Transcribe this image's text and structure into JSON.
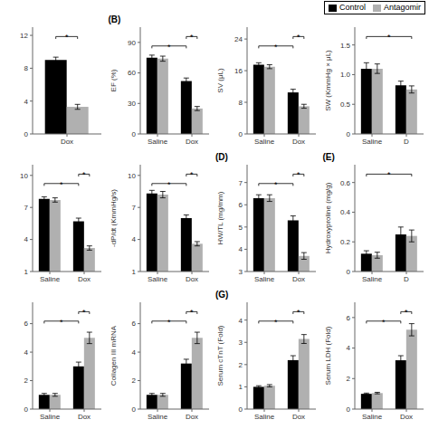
{
  "chart_data": [
    {
      "type": "bar",
      "categories": [
        "Dox"
      ],
      "series": [
        {
          "name": "Control",
          "color": "#000000",
          "values": [
            9.0
          ],
          "errors": [
            0.35
          ]
        },
        {
          "name": "Antagomir",
          "color": "#b0b0b0",
          "values": [
            3.3
          ],
          "errors": [
            0.3
          ]
        }
      ],
      "ylim": [
        0,
        13
      ],
      "yticks": [
        0,
        4,
        8,
        12
      ],
      "annotations": [
        {
          "text": "*",
          "from": {
            "series": "Control",
            "category": "Dox"
          },
          "to": {
            "series": "Antagomir",
            "category": "Dox"
          }
        }
      ]
    },
    {
      "type": "bar",
      "title": "(B)",
      "y_label": "EF (%)",
      "categories": [
        "Saline",
        "Dox"
      ],
      "series": [
        {
          "name": "Control",
          "color": "#000000",
          "values": [
            75,
            52
          ],
          "errors": [
            2.5,
            3
          ]
        },
        {
          "name": "Antagomir",
          "color": "#b0b0b0",
          "values": [
            74,
            25
          ],
          "errors": [
            2.5,
            2
          ]
        }
      ],
      "ylim": [
        0,
        105
      ],
      "yticks": [
        0,
        30,
        60,
        90
      ],
      "annotations": [
        {
          "text": "*",
          "from": {
            "series": "Control",
            "category": "Saline"
          },
          "to": {
            "series": "Control",
            "category": "Dox"
          }
        },
        {
          "text": "*",
          "from": {
            "series": "Control",
            "category": "Dox"
          },
          "to": {
            "series": "Antagomir",
            "category": "Dox"
          }
        }
      ]
    },
    {
      "type": "bar",
      "y_label": "SV (μL)",
      "categories": [
        "Saline",
        "Dox"
      ],
      "series": [
        {
          "name": "Control",
          "color": "#000000",
          "values": [
            17.5,
            10.5
          ],
          "errors": [
            0.5,
            0.8
          ]
        },
        {
          "name": "Antagomir",
          "color": "#b0b0b0",
          "values": [
            17.0,
            7.0
          ],
          "errors": [
            0.5,
            0.5
          ]
        }
      ],
      "ylim": [
        0,
        27
      ],
      "yticks": [
        0,
        8,
        16,
        24
      ],
      "annotations": [
        {
          "text": "*",
          "from": {
            "series": "Control",
            "category": "Saline"
          },
          "to": {
            "series": "Control",
            "category": "Dox"
          }
        },
        {
          "text": "*",
          "from": {
            "series": "Control",
            "category": "Dox"
          },
          "to": {
            "series": "Antagomir",
            "category": "Dox"
          }
        }
      ]
    },
    {
      "type": "bar",
      "y_label": "SW (KmmHg × μL)",
      "categories": [
        "Saline",
        "D"
      ],
      "series": [
        {
          "name": "Control",
          "color": "#000000",
          "values": [
            1.1,
            0.82
          ],
          "errors": [
            0.1,
            0.07
          ]
        },
        {
          "name": "Antagomir",
          "color": "#b0b0b0",
          "values": [
            1.1,
            0.75
          ],
          "errors": [
            0.08,
            0.06
          ]
        }
      ],
      "ylim": [
        0,
        1.8
      ],
      "yticks": [
        0,
        0.5,
        {
          "value": 1.0,
          "label": "1.0"
        },
        1.5
      ],
      "annotations": [
        {
          "text": "*",
          "from": {
            "series": "Control",
            "category": "Saline"
          },
          "to": {
            "series": "Antagomir",
            "category": "D"
          }
        }
      ],
      "legend": "upper right"
    },
    {
      "type": "bar",
      "categories": [
        "Saline",
        "Dox"
      ],
      "series": [
        {
          "name": "Control",
          "color": "#000000",
          "values": [
            7.8,
            5.7
          ],
          "errors": [
            0.2,
            0.3
          ]
        },
        {
          "name": "Antagomir",
          "color": "#b0b0b0",
          "values": [
            7.7,
            3.2
          ],
          "errors": [
            0.2,
            0.2
          ]
        }
      ],
      "ylim": [
        1,
        11
      ],
      "yticks": [
        1,
        4,
        7,
        10
      ],
      "annotations": [
        {
          "text": "*",
          "from": {
            "series": "Control",
            "category": "Saline"
          },
          "to": {
            "series": "Control",
            "category": "Dox"
          }
        },
        {
          "text": "*",
          "from": {
            "series": "Control",
            "category": "Dox"
          },
          "to": {
            "series": "Antagomir",
            "category": "Dox"
          }
        }
      ]
    },
    {
      "type": "bar",
      "y_label": "-dP/dt (KmmHg/s)",
      "categories": [
        "Saline",
        "Dox"
      ],
      "series": [
        {
          "name": "Control",
          "color": "#000000",
          "values": [
            8.3,
            6.0
          ],
          "errors": [
            0.3,
            0.3
          ]
        },
        {
          "name": "Antagomir",
          "color": "#b0b0b0",
          "values": [
            8.2,
            3.6
          ],
          "errors": [
            0.3,
            0.2
          ]
        }
      ],
      "ylim": [
        1,
        11
      ],
      "yticks": [
        1,
        4,
        7,
        10
      ],
      "annotations": [
        {
          "text": "*",
          "from": {
            "series": "Control",
            "category": "Saline"
          },
          "to": {
            "series": "Control",
            "category": "Dox"
          }
        },
        {
          "text": "*",
          "from": {
            "series": "Control",
            "category": "Dox"
          },
          "to": {
            "series": "Antagomir",
            "category": "Dox"
          }
        }
      ]
    },
    {
      "type": "bar",
      "title": "(D)",
      "y_label": "HW/TL (mg/mm)",
      "categories": [
        "Saline",
        "Dox"
      ],
      "series": [
        {
          "name": "Control",
          "color": "#000000",
          "values": [
            6.3,
            5.3
          ],
          "errors": [
            0.15,
            0.2
          ]
        },
        {
          "name": "Antagomir",
          "color": "#b0b0b0",
          "values": [
            6.3,
            3.7
          ],
          "errors": [
            0.15,
            0.15
          ]
        }
      ],
      "ylim": [
        3,
        7.8
      ],
      "yticks": [
        3,
        4,
        5,
        6,
        7
      ],
      "annotations": [
        {
          "text": "*",
          "from": {
            "series": "Control",
            "category": "Saline"
          },
          "to": {
            "series": "Control",
            "category": "Dox"
          }
        },
        {
          "text": "*",
          "from": {
            "series": "Control",
            "category": "Dox"
          },
          "to": {
            "series": "Antagomir",
            "category": "Dox"
          }
        }
      ]
    },
    {
      "type": "bar",
      "title": "(E)",
      "y_label": "Hydroxyproline (mg/g)",
      "categories": [
        "Saline",
        "D"
      ],
      "series": [
        {
          "name": "Control",
          "color": "#000000",
          "values": [
            0.12,
            0.25
          ],
          "errors": [
            0.02,
            0.05
          ]
        },
        {
          "name": "Antagomir",
          "color": "#b0b0b0",
          "values": [
            0.11,
            0.24
          ],
          "errors": [
            0.02,
            0.04
          ]
        }
      ],
      "ylim": [
        0,
        0.72
      ],
      "yticks": [
        0,
        0.2,
        0.4,
        0.6
      ],
      "annotations": [
        {
          "text": "*",
          "from": {
            "series": "Control",
            "category": "Saline"
          },
          "to": {
            "series": "Antagomir",
            "category": "D"
          }
        }
      ]
    },
    {
      "type": "bar",
      "categories": [
        "Saline",
        "Dox"
      ],
      "series": [
        {
          "name": "Control",
          "color": "#000000",
          "values": [
            1.0,
            3.0
          ],
          "errors": [
            0.1,
            0.3
          ]
        },
        {
          "name": "Antagomir",
          "color": "#b0b0b0",
          "values": [
            1.0,
            5.0
          ],
          "errors": [
            0.1,
            0.4
          ]
        }
      ],
      "ylim": [
        0,
        7.5
      ],
      "yticks": [
        0,
        2,
        4,
        6
      ],
      "annotations": [
        {
          "text": "*",
          "from": {
            "series": "Control",
            "category": "Saline"
          },
          "to": {
            "series": "Control",
            "category": "Dox"
          }
        },
        {
          "text": "*",
          "from": {
            "series": "Control",
            "category": "Dox"
          },
          "to": {
            "series": "Antagomir",
            "category": "Dox"
          }
        }
      ]
    },
    {
      "type": "bar",
      "y_label": "Collagen III mRNA",
      "categories": [
        "Saline",
        "Dox"
      ],
      "series": [
        {
          "name": "Control",
          "color": "#000000",
          "values": [
            1.0,
            3.2
          ],
          "errors": [
            0.1,
            0.3
          ]
        },
        {
          "name": "Antagomir",
          "color": "#b0b0b0",
          "values": [
            1.0,
            5.0
          ],
          "errors": [
            0.1,
            0.4
          ]
        }
      ],
      "ylim": [
        0,
        7.5
      ],
      "yticks": [
        0,
        2,
        4,
        6
      ],
      "annotations": [
        {
          "text": "*",
          "from": {
            "series": "Control",
            "category": "Saline"
          },
          "to": {
            "series": "Control",
            "category": "Dox"
          }
        },
        {
          "text": "*",
          "from": {
            "series": "Control",
            "category": "Dox"
          },
          "to": {
            "series": "Antagomir",
            "category": "Dox"
          }
        }
      ]
    },
    {
      "type": "bar",
      "title": "(G)",
      "y_label": "Serum cTnT (Fold)",
      "categories": [
        "Saline",
        "Dox"
      ],
      "series": [
        {
          "name": "Control",
          "color": "#000000",
          "values": [
            1.0,
            2.2
          ],
          "errors": [
            0.05,
            0.2
          ]
        },
        {
          "name": "Antagomir",
          "color": "#b0b0b0",
          "values": [
            1.05,
            3.15
          ],
          "errors": [
            0.05,
            0.2
          ]
        }
      ],
      "ylim": [
        0,
        4.8
      ],
      "yticks": [
        0,
        1,
        2,
        3,
        4
      ],
      "annotations": [
        {
          "text": "*",
          "from": {
            "series": "Control",
            "category": "Saline"
          },
          "to": {
            "series": "Control",
            "category": "Dox"
          }
        },
        {
          "text": "*",
          "from": {
            "series": "Control",
            "category": "Dox"
          },
          "to": {
            "series": "Antagomir",
            "category": "Dox"
          }
        }
      ]
    },
    {
      "type": "bar",
      "y_label": "Serum LDH (Fold)",
      "categories": [
        "Saline",
        "Dox"
      ],
      "series": [
        {
          "name": "Control",
          "color": "#000000",
          "values": [
            1.0,
            3.2
          ],
          "errors": [
            0.05,
            0.3
          ]
        },
        {
          "name": "Antagomir",
          "color": "#b0b0b0",
          "values": [
            1.05,
            5.2
          ],
          "errors": [
            0.05,
            0.4
          ]
        }
      ],
      "ylim": [
        0,
        7.0
      ],
      "yticks": [
        0,
        2,
        4,
        6
      ],
      "annotations": [
        {
          "text": "*",
          "from": {
            "series": "Control",
            "category": "Saline"
          },
          "to": {
            "series": "Control",
            "category": "Dox"
          }
        },
        {
          "text": "*",
          "from": {
            "series": "Control",
            "category": "Dox"
          },
          "to": {
            "series": "Antagomir",
            "category": "Dox"
          }
        }
      ]
    }
  ]
}
